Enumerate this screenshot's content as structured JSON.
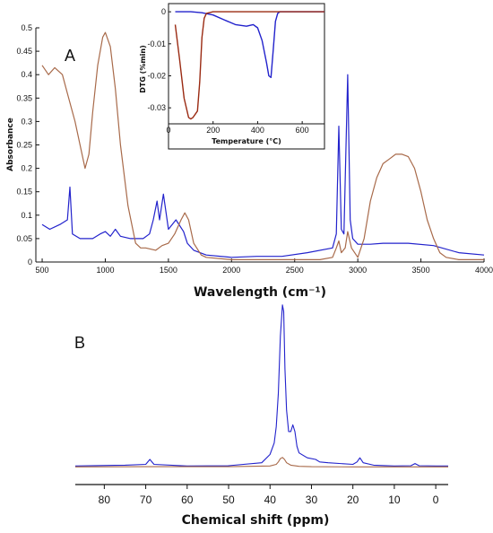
{
  "colors": {
    "blue": "#2222cc",
    "brown": "#a86a4a",
    "darkred": "#9a2a12",
    "axis": "#111111"
  },
  "chart_data": [
    {
      "panel": "A",
      "type": "line",
      "xlabel": "Wavelength (cm⁻¹)",
      "ylabel": "Absorbance",
      "xlim": [
        450,
        4000
      ],
      "ylim": [
        0,
        0.5
      ],
      "xticks": [
        "500",
        "1000",
        "1500",
        "2000",
        "2500",
        "3000",
        "3500",
        "4000"
      ],
      "yticks": [
        "0",
        "0.05",
        "0.1",
        "0.15",
        "0.2",
        "0.25",
        "0.3",
        "0.35",
        "0.4",
        "0.45",
        "0.5"
      ],
      "series": [
        {
          "color": "blue",
          "x": [
            500,
            560,
            640,
            700,
            720,
            740,
            800,
            900,
            960,
            1000,
            1040,
            1080,
            1120,
            1200,
            1300,
            1350,
            1380,
            1410,
            1430,
            1460,
            1500,
            1560,
            1620,
            1650,
            1700,
            1800,
            2000,
            2200,
            2400,
            2600,
            2800,
            2830,
            2850,
            2870,
            2890,
            2920,
            2940,
            2960,
            3000,
            3100,
            3200,
            3400,
            3600,
            3800,
            4000
          ],
          "y": [
            0.08,
            0.07,
            0.08,
            0.09,
            0.16,
            0.06,
            0.05,
            0.05,
            0.06,
            0.065,
            0.055,
            0.07,
            0.055,
            0.05,
            0.05,
            0.06,
            0.09,
            0.13,
            0.09,
            0.145,
            0.07,
            0.09,
            0.065,
            0.04,
            0.025,
            0.015,
            0.01,
            0.012,
            0.012,
            0.02,
            0.03,
            0.06,
            0.29,
            0.07,
            0.06,
            0.4,
            0.09,
            0.05,
            0.038,
            0.038,
            0.04,
            0.04,
            0.035,
            0.02,
            0.015
          ]
        },
        {
          "color": "brown",
          "x": [
            500,
            550,
            600,
            660,
            700,
            760,
            840,
            870,
            900,
            940,
            980,
            1000,
            1040,
            1080,
            1120,
            1180,
            1240,
            1280,
            1320,
            1400,
            1450,
            1500,
            1550,
            1600,
            1630,
            1660,
            1700,
            1760,
            1800,
            2000,
            2200,
            2400,
            2600,
            2700,
            2800,
            2830,
            2850,
            2870,
            2900,
            2920,
            2950,
            3000,
            3050,
            3100,
            3150,
            3200,
            3250,
            3300,
            3350,
            3400,
            3450,
            3500,
            3550,
            3600,
            3650,
            3700,
            3800,
            4000
          ],
          "y": [
            0.42,
            0.4,
            0.415,
            0.4,
            0.36,
            0.3,
            0.2,
            0.23,
            0.32,
            0.42,
            0.48,
            0.49,
            0.46,
            0.37,
            0.25,
            0.12,
            0.04,
            0.03,
            0.03,
            0.025,
            0.035,
            0.04,
            0.06,
            0.09,
            0.105,
            0.09,
            0.04,
            0.015,
            0.01,
            0.005,
            0.005,
            0.005,
            0.005,
            0.005,
            0.01,
            0.03,
            0.045,
            0.02,
            0.03,
            0.065,
            0.03,
            0.01,
            0.05,
            0.13,
            0.18,
            0.21,
            0.22,
            0.23,
            0.23,
            0.225,
            0.2,
            0.15,
            0.09,
            0.05,
            0.02,
            0.01,
            0.005,
            0.005
          ]
        }
      ]
    },
    {
      "panel": "inset",
      "type": "line",
      "xlabel": "Temperature (°C)",
      "ylabel": "DTG (%min)",
      "xlim": [
        0,
        700
      ],
      "ylim": [
        -0.035,
        0.002
      ],
      "xticks": [
        "0",
        "200",
        "400",
        "600"
      ],
      "yticks": [
        "0",
        "-0.01",
        "-0.02",
        "-0.03"
      ],
      "series": [
        {
          "color": "blue",
          "x": [
            30,
            100,
            150,
            200,
            250,
            300,
            350,
            380,
            400,
            420,
            440,
            450,
            460,
            470,
            480,
            490,
            500,
            600,
            700
          ],
          "y": [
            0,
            0,
            -0.0003,
            -0.001,
            -0.0025,
            -0.004,
            -0.0045,
            -0.004,
            -0.005,
            -0.009,
            -0.016,
            -0.02,
            -0.0205,
            -0.012,
            -0.003,
            -0.0005,
            0,
            0,
            0
          ]
        },
        {
          "color": "darkred",
          "x": [
            30,
            50,
            70,
            90,
            100,
            110,
            120,
            130,
            140,
            150,
            160,
            170,
            200,
            300,
            400,
            500,
            600,
            700
          ],
          "y": [
            -0.004,
            -0.015,
            -0.027,
            -0.033,
            -0.0335,
            -0.033,
            -0.032,
            -0.031,
            -0.022,
            -0.008,
            -0.002,
            -0.0005,
            0,
            0,
            0,
            0,
            0,
            0
          ]
        }
      ]
    },
    {
      "panel": "B",
      "type": "line",
      "xlabel": "Chemical shift (ppm)",
      "xlim": [
        87,
        -3
      ],
      "ylim": [
        -0.01,
        1
      ],
      "xticks": [
        "80",
        "70",
        "60",
        "50",
        "40",
        "30",
        "20",
        "10",
        "0"
      ],
      "series": [
        {
          "color": "blue",
          "x": [
            87,
            75,
            70,
            69,
            68,
            60,
            50,
            42,
            40,
            39,
            38.5,
            38,
            37.5,
            37,
            36.7,
            36.4,
            36,
            35.5,
            35,
            34.5,
            34,
            33.5,
            33,
            31,
            29,
            28,
            26,
            20,
            19,
            18.3,
            17.5,
            15,
            10,
            6,
            5,
            4,
            0,
            -3
          ],
          "y": [
            0.01,
            0.015,
            0.02,
            0.05,
            0.02,
            0.01,
            0.012,
            0.03,
            0.08,
            0.15,
            0.25,
            0.45,
            0.8,
            0.99,
            0.95,
            0.6,
            0.35,
            0.22,
            0.22,
            0.26,
            0.22,
            0.13,
            0.09,
            0.06,
            0.05,
            0.035,
            0.03,
            0.02,
            0.035,
            0.06,
            0.03,
            0.015,
            0.01,
            0.012,
            0.025,
            0.012,
            0.01,
            0.01
          ]
        },
        {
          "color": "brown",
          "x": [
            87,
            70,
            50,
            40,
            38.5,
            38,
            37.5,
            37,
            36.5,
            36,
            35,
            33,
            30,
            20,
            10,
            0,
            -3
          ],
          "y": [
            0.005,
            0.006,
            0.006,
            0.01,
            0.02,
            0.035,
            0.055,
            0.062,
            0.05,
            0.03,
            0.015,
            0.008,
            0.006,
            0.005,
            0.005,
            0.005,
            0.005
          ]
        }
      ]
    }
  ]
}
